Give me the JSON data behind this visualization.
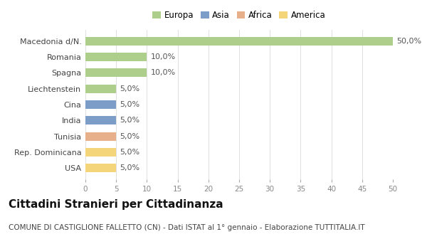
{
  "categories": [
    "Macedonia d/N.",
    "Romania",
    "Spagna",
    "Liechtenstein",
    "Cina",
    "India",
    "Tunisia",
    "Rep. Dominicana",
    "USA"
  ],
  "values": [
    50.0,
    10.0,
    10.0,
    5.0,
    5.0,
    5.0,
    5.0,
    5.0,
    5.0
  ],
  "bar_colors": [
    "#aece8b",
    "#aece8b",
    "#aece8b",
    "#aece8b",
    "#7b9dc7",
    "#7b9dc7",
    "#e8b08a",
    "#f5d57a",
    "#f5d57a"
  ],
  "legend_labels": [
    "Europa",
    "Asia",
    "Africa",
    "America"
  ],
  "legend_colors": [
    "#aece8b",
    "#7b9dc7",
    "#e8b08a",
    "#f5d57a"
  ],
  "xlim": [
    0,
    50
  ],
  "xticks": [
    0,
    5,
    10,
    15,
    20,
    25,
    30,
    35,
    40,
    45,
    50
  ],
  "title": "Cittadini Stranieri per Cittadinanza",
  "subtitle": "COMUNE DI CASTIGLIONE FALLETTO (CN) - Dati ISTAT al 1° gennaio - Elaborazione TUTTITALIA.IT",
  "background_color": "#ffffff",
  "grid_color": "#e0e0e0",
  "bar_height": 0.55,
  "title_fontsize": 11,
  "subtitle_fontsize": 7.5,
  "label_fontsize": 8,
  "tick_fontsize": 7.5,
  "legend_fontsize": 8.5
}
